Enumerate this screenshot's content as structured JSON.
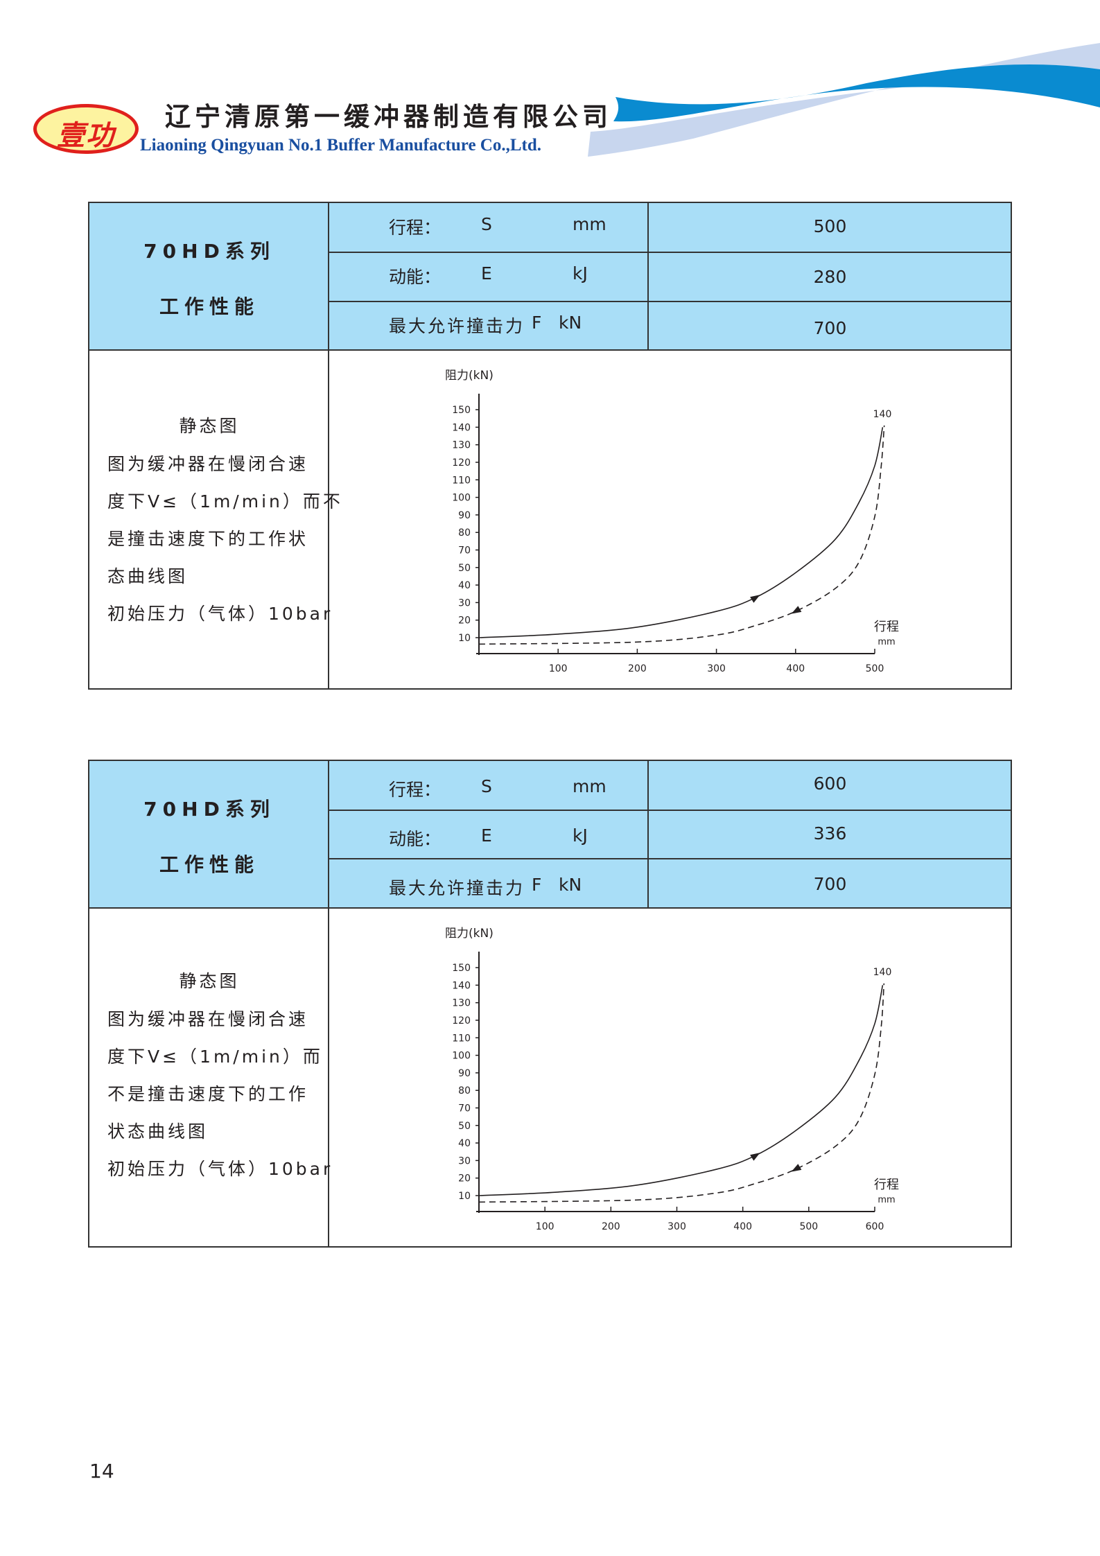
{
  "header": {
    "logo_text": "壹功",
    "company_cn": "辽宁清原第一缓冲器制造有限公司",
    "company_en": "Liaoning Qingyuan No.1 Buffer Manufacture Co.,Ltd.",
    "colors": {
      "wave_dark": "#0a8bd0",
      "wave_light": "#c8d6ee",
      "logo_red": "#e0201c",
      "logo_yellow": "#fdf3a0",
      "brand_blue": "#1a4fa0"
    }
  },
  "table_fill": "#a9def7",
  "sections": [
    {
      "series": "70HD系列",
      "subtitle": "工作性能",
      "rows": [
        {
          "label": "行程：",
          "symbol": "S",
          "unit": "mm",
          "value": "500"
        },
        {
          "label": "动能：",
          "symbol": "E",
          "unit": "kJ",
          "value": "280"
        },
        {
          "label": "最大允许撞击力",
          "symbol": "F",
          "unit": "kN",
          "value": "700"
        }
      ],
      "desc_title": "静态图",
      "desc_lines": [
        "图为缓冲器在慢闭合速",
        "度下V≤（1m/min）而不",
        "是撞击速度下的工作状",
        "态曲线图",
        "初始压力（气体）10bar"
      ]
    },
    {
      "series": "70HD系列",
      "subtitle": "工作性能",
      "rows": [
        {
          "label": "行程：",
          "symbol": "S",
          "unit": "mm",
          "value": "600"
        },
        {
          "label": "动能：",
          "symbol": "E",
          "unit": "kJ",
          "value": "336"
        },
        {
          "label": "最大允许撞击力",
          "symbol": "F",
          "unit": "kN",
          "value": "700"
        }
      ],
      "desc_title": "静态图",
      "desc_lines": [
        "图为缓冲器在慢闭合速",
        "度下V≤（1m/min）而",
        "不是撞击速度下的工作",
        "状态曲线图",
        "初始压力（气体）10bar"
      ]
    }
  ],
  "chart_data": [
    {
      "type": "line",
      "ylabel": "阻力(kN)",
      "xlabel": "行程",
      "xunit": "mm",
      "yticks": [
        10,
        20,
        30,
        40,
        50,
        70,
        80,
        90,
        100,
        110,
        120,
        130,
        140,
        150
      ],
      "xticks": [
        100,
        200,
        300,
        400,
        500
      ],
      "xlim": [
        0,
        500
      ],
      "peak_label": "140",
      "series": [
        {
          "style": "solid",
          "direction": "loading",
          "x": [
            0,
            100,
            200,
            300,
            350,
            400,
            450,
            480,
            500,
            510
          ],
          "y": [
            10,
            12,
            16,
            25,
            33,
            47,
            76,
            97,
            118,
            140
          ]
        },
        {
          "style": "dashed",
          "direction": "unloading",
          "x": [
            0,
            200,
            300,
            350,
            400,
            450,
            480,
            500,
            508,
            512
          ],
          "y": [
            6.3,
            7.5,
            11.5,
            17,
            25,
            38,
            56,
            89,
            117,
            141
          ]
        }
      ]
    },
    {
      "type": "line",
      "ylabel": "阻力(kN)",
      "xlabel": "行程",
      "xunit": "mm",
      "yticks": [
        10,
        20,
        30,
        40,
        50,
        70,
        80,
        90,
        100,
        110,
        120,
        130,
        140,
        150
      ],
      "xticks": [
        100,
        200,
        300,
        400,
        500,
        600
      ],
      "xlim": [
        0,
        600
      ],
      "peak_label": "140",
      "series": [
        {
          "style": "solid",
          "direction": "loading",
          "x": [
            0,
            120,
            240,
            360,
            420,
            480,
            540,
            576,
            600,
            612
          ],
          "y": [
            10,
            12,
            16,
            25,
            33,
            47,
            76,
            97,
            118,
            140
          ]
        },
        {
          "style": "dashed",
          "direction": "unloading",
          "x": [
            0,
            240,
            360,
            420,
            480,
            540,
            576,
            600,
            610,
            614
          ],
          "y": [
            6.3,
            7.5,
            11.5,
            17,
            25,
            38,
            56,
            89,
            117,
            141
          ]
        }
      ]
    }
  ],
  "footer": {
    "page_number": "14"
  }
}
